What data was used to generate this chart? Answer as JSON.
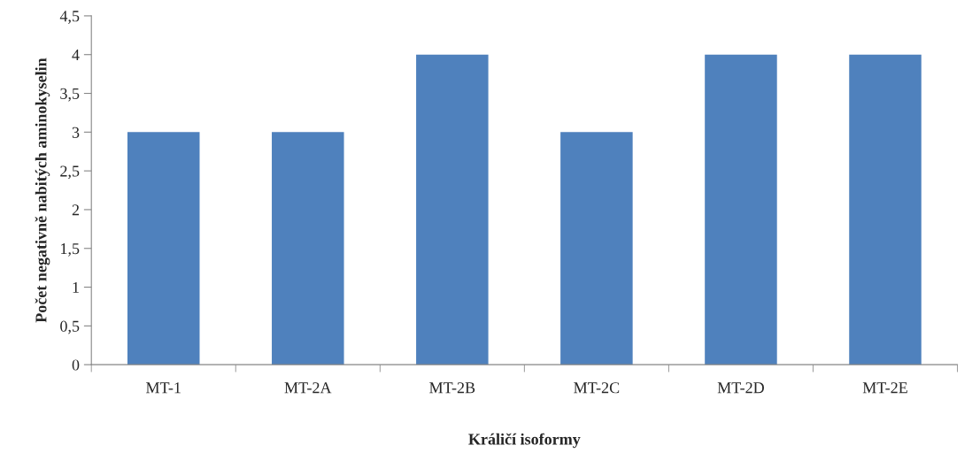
{
  "chart_data": {
    "type": "bar",
    "categories": [
      "MT-1",
      "MT-2A",
      "MT-2B",
      "MT-2C",
      "MT-2D",
      "MT-2E"
    ],
    "values": [
      3,
      3,
      4,
      3,
      4,
      4
    ],
    "color": "#4f81bd",
    "xlabel": "Králičí isoformy",
    "ylabel": "Počet negativně nabitých aminokyselin",
    "ylim": [
      0,
      4.5
    ],
    "yticks": [
      0,
      {
        "value": 0.5,
        "label": "0,5"
      },
      1,
      {
        "value": 1.5,
        "label": "1,5"
      },
      2,
      {
        "value": 2.5,
        "label": "2,5"
      },
      3,
      {
        "value": 3.5,
        "label": "3,5"
      },
      4,
      {
        "value": 4.5,
        "label": "4,5"
      }
    ],
    "grid": false,
    "legend": false
  }
}
